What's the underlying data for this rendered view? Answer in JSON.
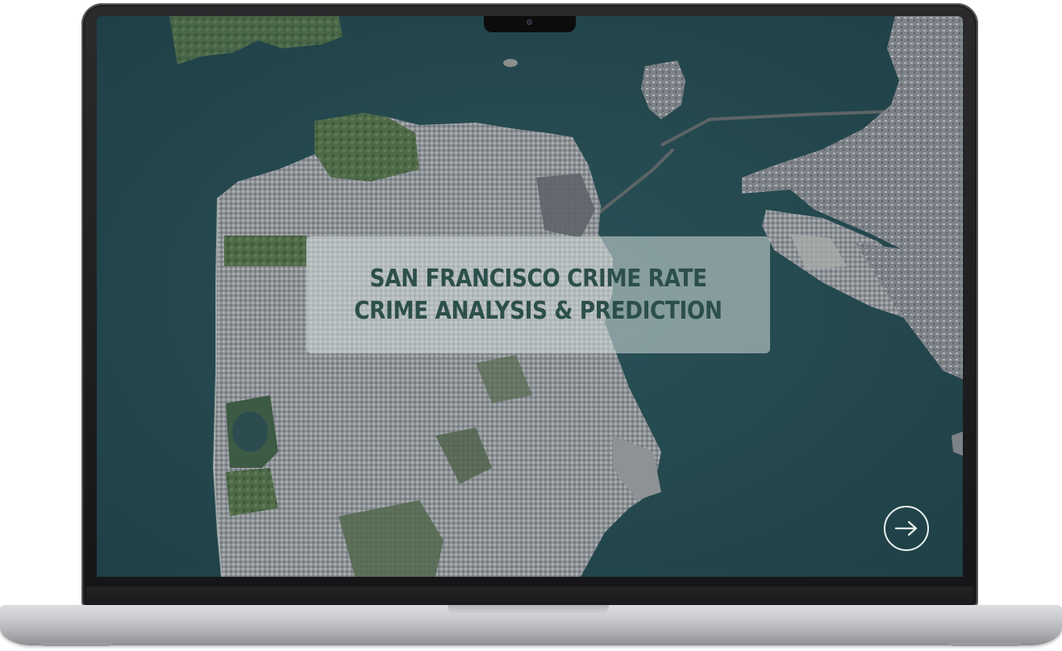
{
  "slide": {
    "title_line_1": "SAN FRANCISCO CRIME RATE",
    "title_line_2": "CRIME ANALYSIS & PREDICTION"
  },
  "controls": {
    "next_icon": "arrow-right-icon"
  },
  "colors": {
    "water": "#24474c",
    "title_text": "#2c4f4b",
    "title_box": "#d6dedc",
    "button_outline": "#e8f2ef"
  }
}
